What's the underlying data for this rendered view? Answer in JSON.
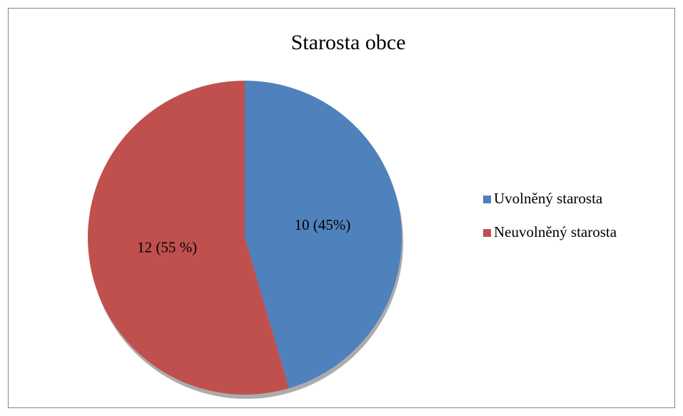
{
  "chart_data": {
    "type": "pie",
    "title": "Starosta obce",
    "categories": [
      "Uvolněný starosta",
      "Neuvolněný starosta"
    ],
    "values": [
      10,
      12
    ],
    "value_labels": [
      "10 (45%)",
      "12 (55 %)"
    ],
    "colors": [
      "#4f81bd",
      "#c0504d"
    ],
    "legend": "right"
  }
}
